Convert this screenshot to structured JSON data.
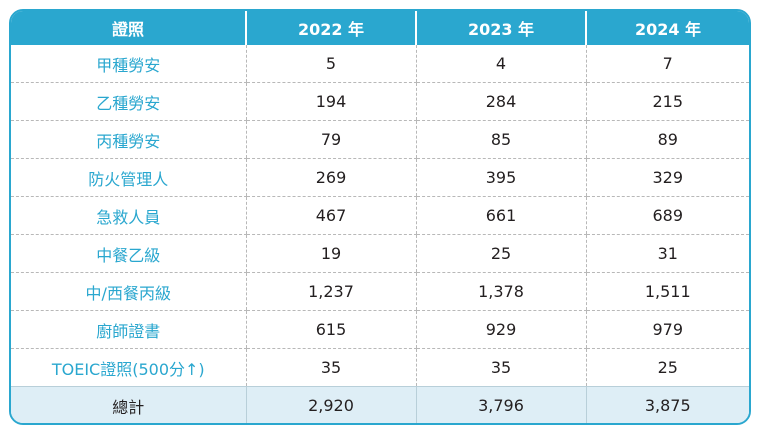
{
  "colors": {
    "accent": "#2aa7cf",
    "total_row_bg": "#deeef6",
    "text": "#231f20",
    "dashed_border": "#b8b8b8"
  },
  "header": {
    "col0": "證照",
    "col1": "2022 年",
    "col2": "2023 年",
    "col3": "2024 年"
  },
  "rows": [
    {
      "label": "甲種勞安",
      "y2022": "5",
      "y2023": "4",
      "y2024": "7"
    },
    {
      "label": "乙種勞安",
      "y2022": "194",
      "y2023": "284",
      "y2024": "215"
    },
    {
      "label": "丙種勞安",
      "y2022": "79",
      "y2023": "85",
      "y2024": "89"
    },
    {
      "label": "防火管理人",
      "y2022": "269",
      "y2023": "395",
      "y2024": "329"
    },
    {
      "label": "急救人員",
      "y2022": "467",
      "y2023": "661",
      "y2024": "689"
    },
    {
      "label": "中餐乙級",
      "y2022": "19",
      "y2023": "25",
      "y2024": "31"
    },
    {
      "label": "中/西餐丙級",
      "y2022": "1,237",
      "y2023": "1,378",
      "y2024": "1,511"
    },
    {
      "label": "廚師證書",
      "y2022": "615",
      "y2023": "929",
      "y2024": "979"
    },
    {
      "label": "TOEIC證照(500分↑)",
      "y2022": "35",
      "y2023": "35",
      "y2024": "25"
    }
  ],
  "total": {
    "label": "總計",
    "y2022": "2,920",
    "y2023": "3,796",
    "y2024": "3,875"
  }
}
